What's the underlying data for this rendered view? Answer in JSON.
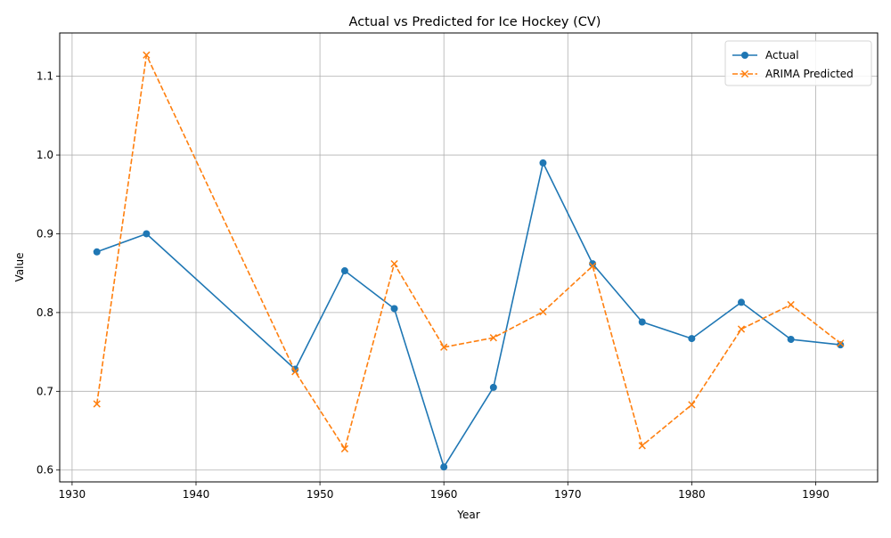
{
  "chart_data": {
    "type": "line",
    "title": "Actual vs Predicted for Ice Hockey (CV)",
    "xlabel": "Year",
    "ylabel": "Value",
    "xlim": [
      1929,
      1995
    ],
    "ylim": [
      0.585,
      1.155
    ],
    "xticks": [
      1930,
      1940,
      1950,
      1960,
      1970,
      1980,
      1990
    ],
    "yticks": [
      0.6,
      0.7,
      0.8,
      0.9,
      1.0,
      1.1
    ],
    "ytick_labels": [
      "0.6",
      "0.7",
      "0.8",
      "0.9",
      "1.0",
      "1.1"
    ],
    "grid": true,
    "legend_position": "top-right",
    "x": [
      1932,
      1936,
      1948,
      1952,
      1956,
      1960,
      1964,
      1968,
      1972,
      1976,
      1980,
      1984,
      1988,
      1992
    ],
    "series": [
      {
        "name": "Actual",
        "color": "#1f77b4",
        "marker": "circle",
        "linestyle": "solid",
        "values": [
          0.877,
          0.9,
          0.728,
          0.853,
          0.805,
          0.604,
          0.705,
          0.99,
          0.862,
          0.788,
          0.767,
          0.813,
          0.766,
          0.759
        ]
      },
      {
        "name": "ARIMA Predicted",
        "color": "#ff7f0e",
        "marker": "x",
        "linestyle": "dashed",
        "values": [
          0.684,
          1.127,
          0.725,
          0.627,
          0.862,
          0.756,
          0.768,
          0.801,
          0.859,
          0.631,
          0.683,
          0.779,
          0.81,
          0.761
        ]
      }
    ]
  }
}
